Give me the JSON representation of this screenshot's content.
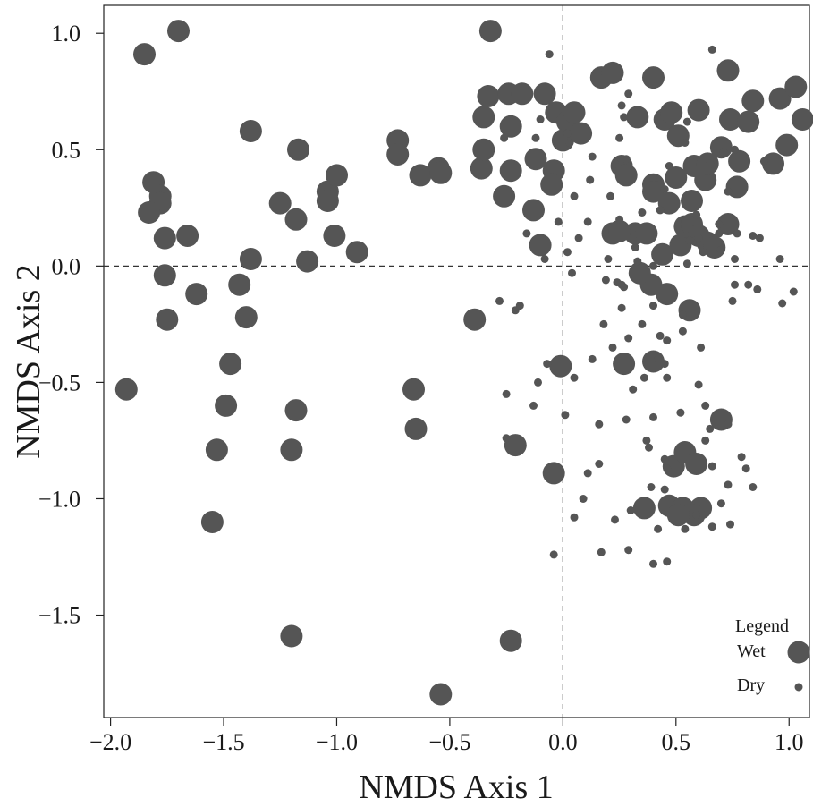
{
  "chart_data": {
    "type": "scatter",
    "title": "",
    "xlabel": "NMDS Axis 1",
    "ylabel": "NMDS Axis 2",
    "xlim": [
      -2.03,
      1.09
    ],
    "ylim": [
      -1.94,
      1.12
    ],
    "xticks": [
      -2.0,
      -1.5,
      -1.0,
      -0.5,
      0.0,
      0.5,
      1.0
    ],
    "yticks": [
      -1.5,
      -1.0,
      -0.5,
      0.0,
      0.5,
      1.0
    ],
    "xtick_labels": [
      "−2.0",
      "−1.5",
      "−1.0",
      "−0.5",
      "0.0",
      "0.5",
      "1.0"
    ],
    "ytick_labels": [
      "−1.5",
      "−1.0",
      "−0.5",
      "0.0",
      "0.5",
      "1.0"
    ],
    "reference_lines": {
      "x": 0,
      "y": 0,
      "style": "dashed"
    },
    "grid": false,
    "marker_color": "#555555",
    "legend": {
      "title": "Legend",
      "position": "bottom-right",
      "entries": [
        {
          "label": "Wet",
          "marker": "large-circle"
        },
        {
          "label": "Dry",
          "marker": "small-circle"
        }
      ]
    },
    "series": [
      {
        "name": "Wet",
        "marker": "large-circle",
        "points": [
          [
            -1.7,
            1.01
          ],
          [
            -1.85,
            0.91
          ],
          [
            -1.81,
            0.36
          ],
          [
            -1.78,
            0.3
          ],
          [
            -1.78,
            0.27
          ],
          [
            -1.83,
            0.23
          ],
          [
            -1.76,
            0.12
          ],
          [
            -1.66,
            0.13
          ],
          [
            -1.76,
            -0.04
          ],
          [
            -1.62,
            -0.12
          ],
          [
            -1.75,
            -0.23
          ],
          [
            -1.43,
            -0.08
          ],
          [
            -1.38,
            0.03
          ],
          [
            -1.38,
            0.58
          ],
          [
            -1.4,
            -0.22
          ],
          [
            -1.47,
            -0.42
          ],
          [
            -1.49,
            -0.6
          ],
          [
            -1.53,
            -0.79
          ],
          [
            -1.55,
            -1.1
          ],
          [
            -1.93,
            -0.53
          ],
          [
            -1.25,
            0.27
          ],
          [
            -1.18,
            0.2
          ],
          [
            -1.17,
            0.5
          ],
          [
            -1.13,
            0.02
          ],
          [
            -1.04,
            0.32
          ],
          [
            -1.04,
            0.28
          ],
          [
            -1.0,
            0.39
          ],
          [
            -1.01,
            0.13
          ],
          [
            -0.91,
            0.06
          ],
          [
            -1.18,
            -0.62
          ],
          [
            -1.2,
            -0.79
          ],
          [
            -1.2,
            -1.59
          ],
          [
            -0.73,
            0.54
          ],
          [
            -0.73,
            0.48
          ],
          [
            -0.63,
            0.39
          ],
          [
            -0.55,
            0.42
          ],
          [
            -0.54,
            0.4
          ],
          [
            -0.66,
            -0.53
          ],
          [
            -0.65,
            -0.7
          ],
          [
            -0.54,
            -1.84
          ],
          [
            -0.32,
            1.01
          ],
          [
            -0.33,
            0.73
          ],
          [
            -0.24,
            0.74
          ],
          [
            -0.18,
            0.74
          ],
          [
            -0.08,
            0.74
          ],
          [
            -0.35,
            0.64
          ],
          [
            -0.23,
            0.6
          ],
          [
            -0.36,
            0.42
          ],
          [
            -0.23,
            0.41
          ],
          [
            -0.35,
            0.5
          ],
          [
            -0.03,
            0.66
          ],
          [
            0.02,
            0.62
          ],
          [
            0.05,
            0.66
          ],
          [
            -0.12,
            0.46
          ],
          [
            0.0,
            0.54
          ],
          [
            -0.04,
            0.41
          ],
          [
            -0.26,
            0.3
          ],
          [
            -0.13,
            0.24
          ],
          [
            -0.05,
            0.35
          ],
          [
            -0.1,
            0.09
          ],
          [
            -0.39,
            -0.23
          ],
          [
            -0.21,
            -0.77
          ],
          [
            -0.04,
            -0.89
          ],
          [
            -0.01,
            -0.43
          ],
          [
            0.08,
            0.57
          ],
          [
            -0.23,
            -1.61
          ],
          [
            0.17,
            0.81
          ],
          [
            0.22,
            0.83
          ],
          [
            0.4,
            0.81
          ],
          [
            0.73,
            0.84
          ],
          [
            0.33,
            0.64
          ],
          [
            0.45,
            0.63
          ],
          [
            0.48,
            0.66
          ],
          [
            0.51,
            0.56
          ],
          [
            0.6,
            0.67
          ],
          [
            0.74,
            0.63
          ],
          [
            0.82,
            0.62
          ],
          [
            0.84,
            0.71
          ],
          [
            0.96,
            0.72
          ],
          [
            1.03,
            0.77
          ],
          [
            1.06,
            0.63
          ],
          [
            0.99,
            0.52
          ],
          [
            0.93,
            0.44
          ],
          [
            0.7,
            0.51
          ],
          [
            0.78,
            0.45
          ],
          [
            0.26,
            0.43
          ],
          [
            0.28,
            0.39
          ],
          [
            0.4,
            0.35
          ],
          [
            0.4,
            0.32
          ],
          [
            0.47,
            0.27
          ],
          [
            0.57,
            0.28
          ],
          [
            0.63,
            0.37
          ],
          [
            0.77,
            0.34
          ],
          [
            0.58,
            0.43
          ],
          [
            0.5,
            0.38
          ],
          [
            0.22,
            0.14
          ],
          [
            0.32,
            0.14
          ],
          [
            0.52,
            0.09
          ],
          [
            0.54,
            0.17
          ],
          [
            0.57,
            0.18
          ],
          [
            0.6,
            0.13
          ],
          [
            0.64,
            0.1
          ],
          [
            0.73,
            0.18
          ],
          [
            0.67,
            0.08
          ],
          [
            0.39,
            -0.08
          ],
          [
            0.46,
            -0.12
          ],
          [
            0.56,
            -0.19
          ],
          [
            0.4,
            -0.41
          ],
          [
            0.7,
            -0.66
          ],
          [
            0.47,
            -1.03
          ],
          [
            0.53,
            -1.04
          ],
          [
            0.49,
            -0.86
          ],
          [
            0.54,
            -0.8
          ],
          [
            0.59,
            -0.85
          ],
          [
            0.36,
            -1.04
          ],
          [
            0.61,
            -1.04
          ],
          [
            0.25,
            0.15
          ],
          [
            0.64,
            0.44
          ],
          [
            0.58,
            -1.07
          ],
          [
            0.51,
            -1.07
          ],
          [
            0.44,
            0.05
          ],
          [
            0.27,
            -0.42
          ],
          [
            0.34,
            -0.03
          ],
          [
            0.37,
            0.14
          ]
        ]
      },
      {
        "name": "Dry",
        "marker": "small-circle",
        "points": [
          [
            -0.06,
            0.91
          ],
          [
            0.66,
            0.93
          ],
          [
            0.29,
            0.74
          ],
          [
            0.26,
            0.69
          ],
          [
            0.27,
            0.64
          ],
          [
            -0.1,
            0.63
          ],
          [
            0.03,
            0.53
          ],
          [
            0.11,
            0.19
          ],
          [
            0.25,
            0.2
          ],
          [
            0.26,
            -0.08
          ],
          [
            0.18,
            -0.25
          ],
          [
            0.29,
            -0.31
          ],
          [
            0.43,
            -0.3
          ],
          [
            0.46,
            -0.32
          ],
          [
            0.42,
            -0.4
          ],
          [
            0.45,
            -0.42
          ],
          [
            0.6,
            -0.51
          ],
          [
            0.28,
            -0.66
          ],
          [
            0.4,
            -0.65
          ],
          [
            0.45,
            -0.83
          ],
          [
            0.46,
            -0.87
          ],
          [
            0.63,
            -0.75
          ],
          [
            0.39,
            -0.95
          ],
          [
            0.45,
            -0.96
          ],
          [
            0.7,
            -1.02
          ],
          [
            0.79,
            -0.82
          ],
          [
            0.81,
            -0.87
          ],
          [
            0.84,
            -0.95
          ],
          [
            0.73,
            -0.94
          ],
          [
            0.29,
            -1.22
          ],
          [
            0.17,
            -1.23
          ],
          [
            0.4,
            -1.28
          ],
          [
            0.46,
            -1.27
          ],
          [
            0.59,
            -1.07
          ],
          [
            -0.04,
            -1.24
          ],
          [
            -0.25,
            -0.55
          ],
          [
            -0.25,
            -0.74
          ],
          [
            -0.13,
            -0.6
          ],
          [
            -0.07,
            -0.42
          ],
          [
            -0.21,
            -0.19
          ],
          [
            -0.28,
            -0.15
          ],
          [
            -0.19,
            -0.17
          ],
          [
            -0.11,
            -0.5
          ],
          [
            0.16,
            -0.85
          ],
          [
            0.11,
            -0.89
          ],
          [
            0.02,
            0.06
          ],
          [
            -0.08,
            0.03
          ],
          [
            -0.16,
            0.14
          ],
          [
            0.04,
            -0.03
          ],
          [
            0.19,
            -0.06
          ],
          [
            0.27,
            -0.09
          ],
          [
            0.53,
            -0.21
          ],
          [
            0.82,
            -0.08
          ],
          [
            0.76,
            -0.08
          ],
          [
            0.75,
            -0.15
          ],
          [
            0.86,
            -0.1
          ],
          [
            0.97,
            -0.16
          ],
          [
            1.02,
            -0.11
          ],
          [
            0.96,
            0.03
          ],
          [
            0.87,
            0.12
          ],
          [
            0.84,
            0.13
          ],
          [
            0.73,
            0.32
          ],
          [
            0.71,
            0.49
          ],
          [
            0.76,
            0.5
          ],
          [
            0.89,
            0.45
          ],
          [
            0.6,
            0.12
          ],
          [
            0.77,
            0.14
          ],
          [
            0.65,
            0.44
          ],
          [
            0.47,
            0.43
          ],
          [
            0.54,
            0.53
          ],
          [
            0.55,
            0.62
          ],
          [
            0.05,
            0.3
          ],
          [
            -0.26,
            0.55
          ],
          [
            0.02,
            0.57
          ],
          [
            0.23,
            0.44
          ],
          [
            0.21,
            0.3
          ],
          [
            -0.12,
            0.55
          ],
          [
            0.28,
            0.46
          ],
          [
            0.4,
            0.38
          ],
          [
            0.45,
            0.33
          ],
          [
            0.56,
            0.11
          ],
          [
            0.35,
            0.23
          ],
          [
            0.59,
            0.22
          ],
          [
            0.69,
            0.18
          ],
          [
            0.24,
            -0.07
          ],
          [
            0.32,
            0.08
          ],
          [
            0.43,
            0.24
          ],
          [
            0.69,
            0.14
          ],
          [
            0.13,
            0.47
          ],
          [
            0.25,
            0.55
          ],
          [
            0.12,
            0.37
          ],
          [
            -0.02,
            0.19
          ],
          [
            0.07,
            0.12
          ],
          [
            0.2,
            0.03
          ],
          [
            0.33,
            0.02
          ],
          [
            0.4,
            0.0
          ],
          [
            0.55,
            0.01
          ],
          [
            0.62,
            0.06
          ],
          [
            0.7,
            0.07
          ],
          [
            0.76,
            0.03
          ],
          [
            0.26,
            -0.18
          ],
          [
            0.4,
            -0.17
          ],
          [
            0.53,
            -0.28
          ],
          [
            0.61,
            -0.35
          ],
          [
            0.36,
            -0.48
          ],
          [
            0.46,
            -0.48
          ],
          [
            0.63,
            -0.6
          ],
          [
            0.52,
            -0.63
          ],
          [
            0.65,
            -0.7
          ],
          [
            0.73,
            -0.68
          ],
          [
            0.38,
            -0.78
          ],
          [
            0.66,
            -0.86
          ],
          [
            0.42,
            -1.13
          ],
          [
            0.54,
            -1.13
          ],
          [
            0.66,
            -1.12
          ],
          [
            0.74,
            -1.11
          ],
          [
            0.23,
            -1.09
          ],
          [
            0.3,
            -1.05
          ],
          [
            0.37,
            -0.75
          ],
          [
            0.31,
            -0.53
          ],
          [
            0.13,
            -0.4
          ],
          [
            0.05,
            -0.48
          ],
          [
            0.01,
            -0.64
          ],
          [
            0.16,
            -0.68
          ],
          [
            0.09,
            -1.0
          ],
          [
            0.05,
            -1.08
          ],
          [
            0.22,
            -0.35
          ],
          [
            0.35,
            -0.25
          ]
        ]
      }
    ]
  }
}
